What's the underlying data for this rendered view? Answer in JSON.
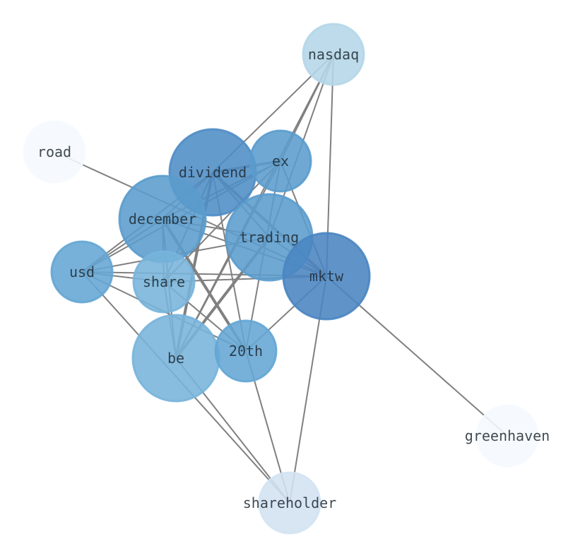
{
  "nodes": [
    {
      "id": "nasdaq",
      "label": "nasdaq",
      "color": "#b4d6e8",
      "size": "small"
    },
    {
      "id": "road",
      "label": "road",
      "color": "#f5f9fe",
      "size": "small"
    },
    {
      "id": "dividend",
      "label": "dividend",
      "color": "#4f8dc6",
      "size": "large"
    },
    {
      "id": "ex",
      "label": "ex",
      "color": "#5a9ccd",
      "size": "small"
    },
    {
      "id": "december",
      "label": "december",
      "color": "#5a9ccd",
      "size": "large"
    },
    {
      "id": "trading",
      "label": "trading",
      "color": "#5a9ccd",
      "size": "large"
    },
    {
      "id": "usd",
      "label": "usd",
      "color": "#64a6d4",
      "size": "small"
    },
    {
      "id": "share",
      "label": "share",
      "color": "#78b4db",
      "size": "small"
    },
    {
      "id": "mktw",
      "label": "mktw",
      "color": "#4a85c2",
      "size": "large"
    },
    {
      "id": "be",
      "label": "be",
      "color": "#78b4db",
      "size": "large"
    },
    {
      "id": "20th",
      "label": "20th",
      "color": "#64a6d4",
      "size": "small"
    },
    {
      "id": "greenhaven",
      "label": "greenhaven",
      "color": "#f5f9fe",
      "size": "small"
    },
    {
      "id": "shareholder",
      "label": "shareholder",
      "color": "#d3e3f2",
      "size": "small"
    }
  ],
  "edges": [
    [
      "nasdaq",
      "dividend",
      1
    ],
    [
      "nasdaq",
      "ex",
      1
    ],
    [
      "nasdaq",
      "be",
      1
    ],
    [
      "nasdaq",
      "trading",
      1
    ],
    [
      "nasdaq",
      "mktw",
      1
    ],
    [
      "road",
      "mktw",
      1
    ],
    [
      "dividend",
      "ex",
      2
    ],
    [
      "dividend",
      "december",
      1
    ],
    [
      "dividend",
      "usd",
      1
    ],
    [
      "dividend",
      "share",
      1
    ],
    [
      "dividend",
      "be",
      2
    ],
    [
      "dividend",
      "mktw",
      2
    ],
    [
      "dividend",
      "20th",
      1
    ],
    [
      "dividend",
      "trading",
      1
    ],
    [
      "ex",
      "december",
      1
    ],
    [
      "ex",
      "usd",
      1
    ],
    [
      "ex",
      "share",
      1
    ],
    [
      "ex",
      "be",
      1
    ],
    [
      "ex",
      "20th",
      1
    ],
    [
      "ex",
      "mktw",
      1
    ],
    [
      "december",
      "usd",
      1
    ],
    [
      "december",
      "share",
      1
    ],
    [
      "december",
      "be",
      1
    ],
    [
      "december",
      "20th",
      2
    ],
    [
      "december",
      "trading",
      1
    ],
    [
      "december",
      "mktw",
      1
    ],
    [
      "usd",
      "trading",
      1
    ],
    [
      "usd",
      "share",
      1
    ],
    [
      "usd",
      "mktw",
      1
    ],
    [
      "usd",
      "20th",
      1
    ],
    [
      "usd",
      "shareholder",
      1
    ],
    [
      "share",
      "mktw",
      1
    ],
    [
      "share",
      "20th",
      1
    ],
    [
      "share",
      "be",
      1
    ],
    [
      "trading",
      "be",
      2
    ],
    [
      "trading",
      "mktw",
      1
    ],
    [
      "mktw",
      "20th",
      1
    ],
    [
      "mktw",
      "shareholder",
      1
    ],
    [
      "mktw",
      "greenhaven",
      1
    ],
    [
      "be",
      "shareholder",
      1
    ],
    [
      "20th",
      "shareholder",
      1
    ]
  ],
  "edge_color": "#808080"
}
